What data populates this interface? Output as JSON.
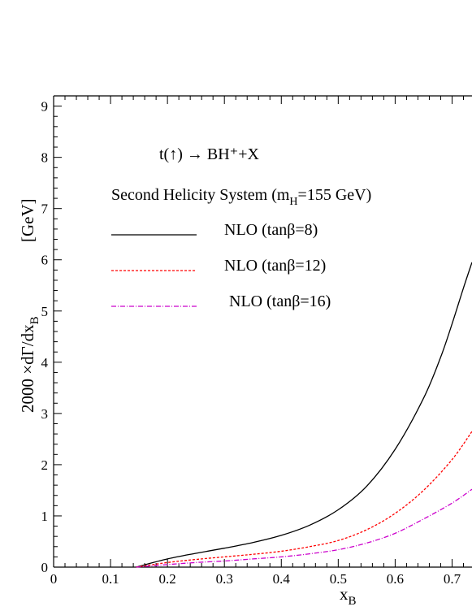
{
  "chart_data": {
    "type": "line",
    "title": "t(↑) → BH⁺+X",
    "subtitle": "Second Helicity System (m_H=155 GeV)",
    "xlabel": "x_B",
    "ylabel": "2000 ×dΓ/dx_B",
    "ylabel_unit": "[GeV]",
    "xlim": [
      0,
      0.735
    ],
    "ylim": [
      0,
      9.2
    ],
    "xticks": [
      "0",
      "0.1",
      "0.2",
      "0.3",
      "0.4",
      "0.5",
      "0.6",
      "0.7"
    ],
    "yticks": [
      "0",
      "1",
      "2",
      "3",
      "4",
      "5",
      "6",
      "7",
      "8",
      "9"
    ],
    "grid": false,
    "legend_position": "top-left",
    "series": [
      {
        "name": "NLO (tanβ=8)",
        "color": "#000000",
        "dash": "solid",
        "x": [
          0.145,
          0.2,
          0.25,
          0.3,
          0.35,
          0.4,
          0.45,
          0.5,
          0.55,
          0.6,
          0.65,
          0.68,
          0.7,
          0.72,
          0.735
        ],
        "y": [
          0.0,
          0.16,
          0.27,
          0.37,
          0.48,
          0.62,
          0.82,
          1.12,
          1.58,
          2.3,
          3.3,
          4.1,
          4.75,
          5.45,
          5.95
        ]
      },
      {
        "name": "NLO (tanβ=12)",
        "color": "#ff0000",
        "dash": "dashed",
        "x": [
          0.145,
          0.2,
          0.25,
          0.3,
          0.35,
          0.4,
          0.45,
          0.5,
          0.55,
          0.6,
          0.65,
          0.7,
          0.735
        ],
        "y": [
          0.0,
          0.09,
          0.15,
          0.2,
          0.25,
          0.31,
          0.4,
          0.52,
          0.73,
          1.05,
          1.5,
          2.1,
          2.65
        ]
      },
      {
        "name": "NLO (tanβ=16)",
        "color": "#cc00cc",
        "dash": "dashdot",
        "x": [
          0.145,
          0.2,
          0.25,
          0.3,
          0.35,
          0.4,
          0.45,
          0.5,
          0.55,
          0.6,
          0.65,
          0.7,
          0.735
        ],
        "y": [
          0.0,
          0.05,
          0.09,
          0.12,
          0.16,
          0.2,
          0.26,
          0.34,
          0.47,
          0.66,
          0.94,
          1.25,
          1.52
        ]
      }
    ]
  }
}
